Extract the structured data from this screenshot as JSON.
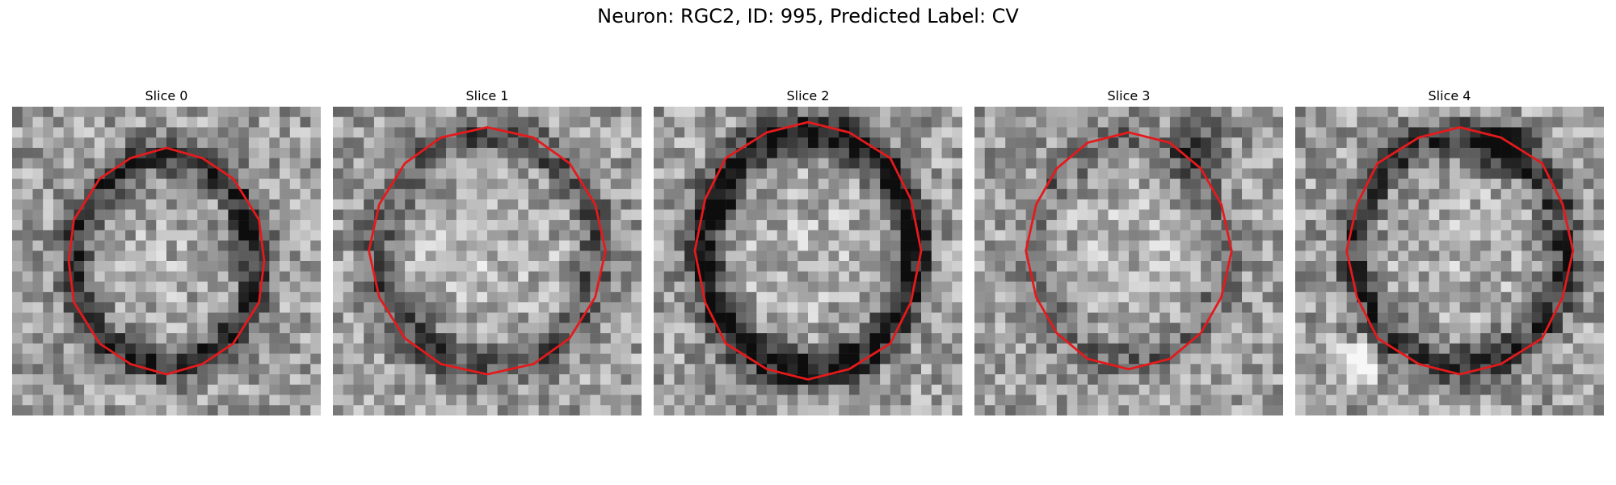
{
  "figure": {
    "title": "Neuron: RGC2, ID: 995, Predicted Label: CV",
    "contour_color": "#e41a1c"
  },
  "slices": [
    {
      "title": "Slice 0"
    },
    {
      "title": "Slice 1"
    },
    {
      "title": "Slice 2"
    },
    {
      "title": "Slice 3"
    },
    {
      "title": "Slice 4"
    }
  ]
}
